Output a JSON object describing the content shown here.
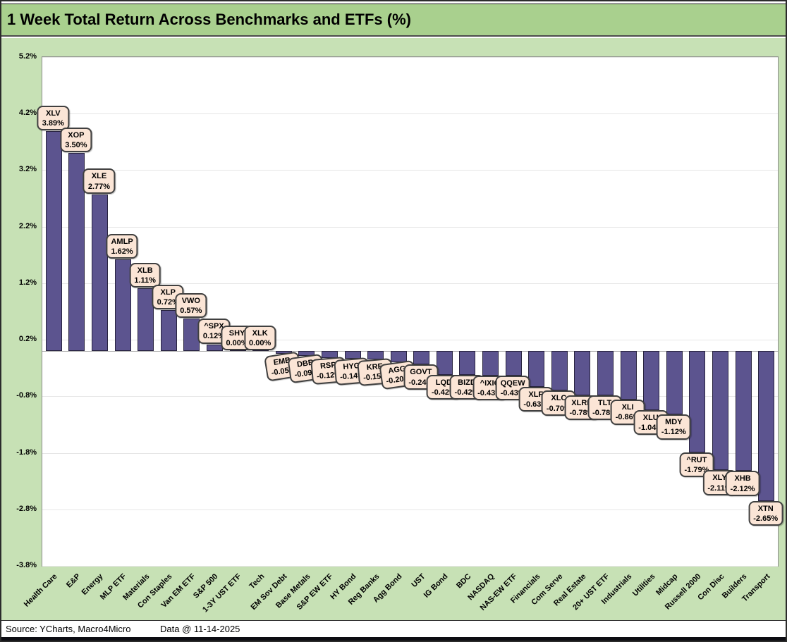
{
  "title": "1 Week Total Return Across Benchmarks and ETFs (%)",
  "footer": {
    "source": "Source: YCharts, Macro4Micro",
    "data_date": "Data @ 11-14-2025"
  },
  "colors": {
    "title_band": "#a9d08e",
    "chart_background": "#c7e1b5",
    "bar_fill": "#5c548f",
    "bar_border": "#28233f",
    "label_box_fill": "#fbe5d6",
    "label_box_border": "#404040"
  },
  "chart_data": {
    "type": "bar",
    "title": "1 Week Total Return Across Benchmarks and ETFs (%)",
    "categories": [
      "Health Care",
      "E&P",
      "Energy",
      "MLP ETF",
      "Materials",
      "Con Staples",
      "Van EM ETF",
      "S&P 500",
      "1-3Y UST ETF",
      "Tech",
      "EM Sov Debt",
      "Base Metals",
      "S&P EW ETF",
      "HY Bond",
      "Reg Banks",
      "Agg Bond",
      "UST",
      "IG Bond",
      "BDC",
      "NASDAQ",
      "NAS-EW ETF",
      "Financials",
      "Com Serve",
      "Real Estate",
      "20+ UST ETF",
      "Industrials",
      "Utilities",
      "Midcap",
      "Russell 2000",
      "Con Disc",
      "Builders",
      "Transport"
    ],
    "tickers": [
      "XLV",
      "XOP",
      "XLE",
      "AMLP",
      "XLB",
      "XLP",
      "VWO",
      "^SPX",
      "SHY",
      "XLK",
      "EMB",
      "DBB",
      "RSP",
      "HYG",
      "KRE",
      "AGG",
      "GOVT",
      "LQD",
      "BIZD",
      "^IXIC",
      "QQEW",
      "XLF",
      "XLC",
      "XLRE",
      "TLT",
      "XLI",
      "XLU",
      "MDY",
      "^RUT",
      "XLY",
      "XHB",
      "XTN"
    ],
    "values": [
      3.89,
      3.5,
      2.77,
      1.62,
      1.11,
      0.72,
      0.57,
      0.12,
      0.0,
      0.0,
      -0.05,
      -0.09,
      -0.12,
      -0.14,
      -0.15,
      -0.2,
      -0.24,
      -0.42,
      -0.42,
      -0.43,
      -0.43,
      -0.63,
      -0.7,
      -0.78,
      -0.78,
      -0.86,
      -1.04,
      -1.12,
      -1.79,
      -2.11,
      -2.12,
      -2.65
    ],
    "value_label_suffix": "%",
    "y_tick_labels": [
      "5.2%",
      "4.2%",
      "3.2%",
      "2.2%",
      "1.2%",
      "0.2%",
      "-0.8%",
      "-1.8%",
      "-2.8%",
      "-3.8%"
    ],
    "y_tick_values": [
      5.2,
      4.2,
      3.2,
      2.2,
      1.2,
      0.2,
      -0.8,
      -1.8,
      -2.8,
      -3.8
    ],
    "ylim": [
      -3.8,
      5.2
    ],
    "xlabel": "",
    "ylabel": "",
    "grid": true,
    "legend": false,
    "data_labels": "ticker and value in rounded callout boxes"
  }
}
